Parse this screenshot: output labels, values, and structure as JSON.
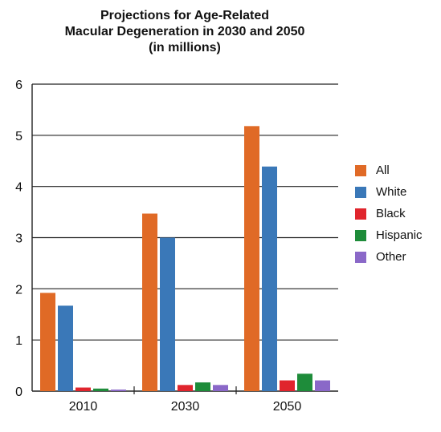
{
  "chart_data": {
    "type": "bar",
    "title_lines": [
      "Projections for Age-Related",
      "Macular Degeneration in 2030 and 2050",
      "(in millions)"
    ],
    "xlabel": "",
    "ylabel": "",
    "categories": [
      "2010",
      "2030",
      "2050"
    ],
    "ylim": [
      0,
      6
    ],
    "yticks": [
      0,
      1,
      2,
      3,
      4,
      5,
      6
    ],
    "grid": true,
    "legend_position": "right",
    "series": [
      {
        "name": "All",
        "color": "#e06a26",
        "values": [
          1.92,
          3.47,
          5.18
        ]
      },
      {
        "name": "White",
        "color": "#3a78b8",
        "values": [
          1.67,
          3.0,
          4.39
        ]
      },
      {
        "name": "Black",
        "color": "#e0252d",
        "values": [
          0.07,
          0.12,
          0.21
        ]
      },
      {
        "name": "Hispanic",
        "color": "#1e8c3a",
        "values": [
          0.05,
          0.17,
          0.34
        ]
      },
      {
        "name": "Other",
        "color": "#8a68c8",
        "values": [
          0.03,
          0.12,
          0.21
        ]
      }
    ]
  }
}
